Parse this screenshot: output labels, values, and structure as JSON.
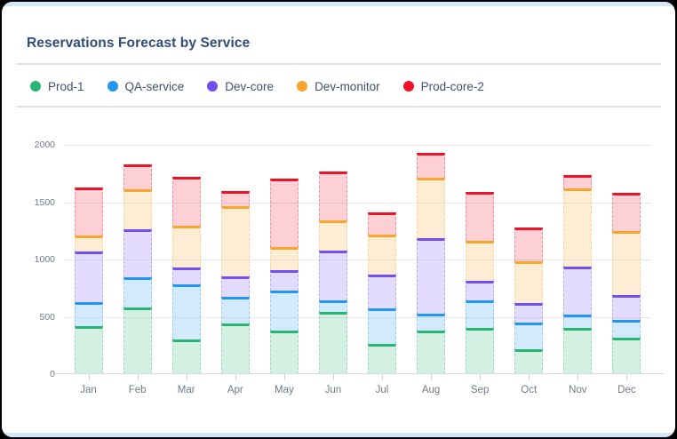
{
  "window": {
    "frame_color": "#000000",
    "accent_strip_color": "#d2e8fa",
    "background": "#ffffff"
  },
  "header": {
    "title": "Reservations Forecast by Service",
    "title_color": "#2f4d7a"
  },
  "chart_data": {
    "type": "bar",
    "stacked": true,
    "title": "Reservations Forecast by Service",
    "categories": [
      "Jan",
      "Feb",
      "Mar",
      "Apr",
      "May",
      "Jun",
      "Jul",
      "Aug",
      "Sep",
      "Oct",
      "Nov",
      "Dec"
    ],
    "series": [
      {
        "name": "Prod-1",
        "color": "#29b574",
        "fill": "rgba(41,181,116,0.2)",
        "values": [
          420,
          580,
          300,
          445,
          380,
          545,
          265,
          380,
          405,
          215,
          405,
          315
        ]
      },
      {
        "name": "QA-service",
        "color": "#2196f3",
        "fill": "rgba(33,150,243,0.2)",
        "values": [
          210,
          265,
          480,
          230,
          345,
          100,
          310,
          150,
          240,
          235,
          115,
          160
        ]
      },
      {
        "name": "Dev-core",
        "color": "#7150f0",
        "fill": "rgba(113,80,240,0.2)",
        "values": [
          440,
          415,
          150,
          180,
          185,
          430,
          290,
          660,
          170,
          170,
          420,
          215
        ]
      },
      {
        "name": "Dev-monitor",
        "color": "#f9a42c",
        "fill": "rgba(249,164,44,0.2)",
        "values": [
          140,
          350,
          365,
          610,
          195,
          265,
          355,
          520,
          350,
          365,
          680,
          560
        ]
      },
      {
        "name": "Prod-core-2",
        "color": "#ef1226",
        "fill": "rgba(239,18,38,0.2)",
        "values": [
          415,
          220,
          425,
          130,
          600,
          425,
          195,
          220,
          425,
          295,
          115,
          330
        ]
      }
    ],
    "ylim": [
      0,
      2000
    ],
    "yticks": [
      0,
      500,
      1000,
      1500,
      2000
    ],
    "grid": true,
    "legend_position": "top",
    "xlabel": "",
    "ylabel": ""
  }
}
